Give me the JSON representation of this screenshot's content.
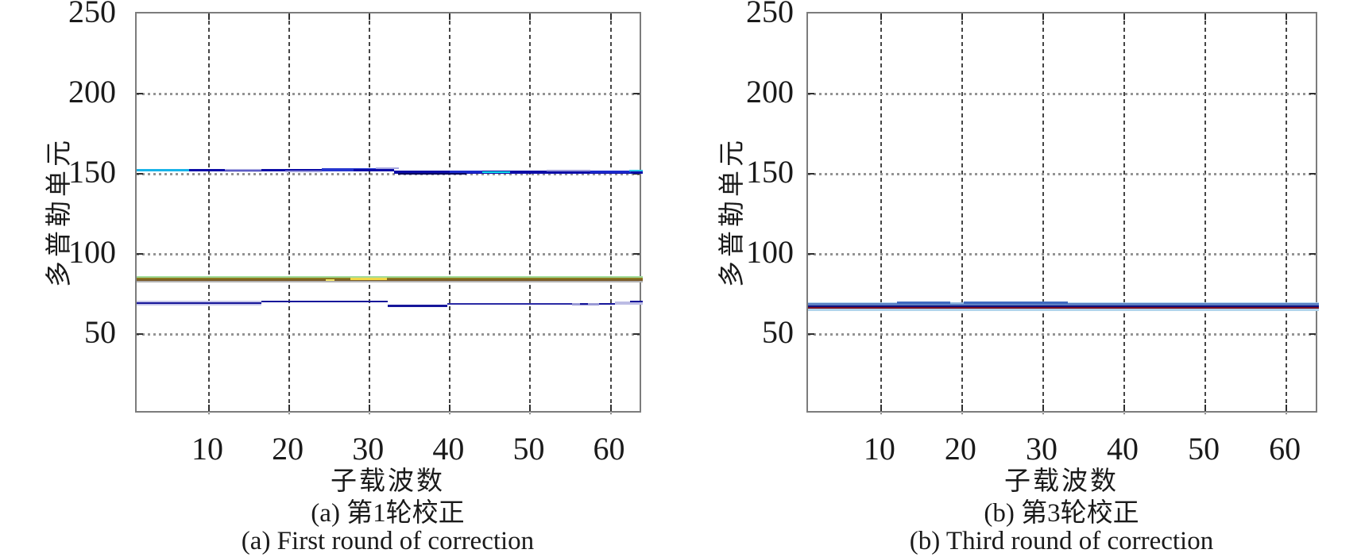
{
  "figure": {
    "background": "#ffffff",
    "border_color": "#7c7c7c",
    "vgrid_color": "#454545",
    "hgrid_color": "#949494"
  },
  "chart_data": [
    {
      "type": "line",
      "panel": "a",
      "xlabel": "子载波数",
      "ylabel": "多普勒单元",
      "caption_zh": "(a) 第1轮校正",
      "caption_en": "(a) First round of correction",
      "xlim": [
        1,
        64
      ],
      "ylim": [
        0,
        250
      ],
      "xticks": [
        10,
        20,
        30,
        40,
        50,
        60
      ],
      "yticks": [
        50,
        100,
        150,
        200,
        250
      ],
      "grid": "dashed",
      "legend": "none",
      "traces": [
        {
          "name": "doppler-trace-high",
          "doppler_cell_approx": 152,
          "x_range": [
            1,
            64
          ],
          "note": "steps from ~152 down to ~151 near x=33; mixed cyan/navy/blue/lavender segments"
        },
        {
          "name": "doppler-trace-mid",
          "doppler_cell_approx": 84,
          "x_range": [
            1,
            64
          ],
          "note": "olive/brown band with green top edge and yellow segments near x=25 and x=28-32"
        },
        {
          "name": "doppler-trace-low",
          "doppler_cell_approx": 70,
          "x_range": [
            1,
            64
          ],
          "note": "navy line stepping 69.4 / 70.2 / 67.6 / 68.7 with lavender halos at ends"
        }
      ],
      "stripes": [
        [
          1,
          33,
          152.1,
          1.6,
          "#0b0ba6"
        ],
        [
          1,
          7.5,
          152.3,
          1.4,
          "#18b4e8"
        ],
        [
          12,
          16.5,
          152.6,
          1.1,
          "#9b9bdc"
        ],
        [
          19.5,
          24,
          151.5,
          0.8,
          "#9b9bdc"
        ],
        [
          24,
          31,
          152.4,
          2.0,
          "#2636cf"
        ],
        [
          28,
          33,
          152.2,
          1.5,
          "#0b0ba6"
        ],
        [
          30.8,
          33.6,
          153.6,
          0.9,
          "#a8a8e0"
        ],
        [
          33,
          64,
          150.9,
          1.7,
          "#0b0ba6"
        ],
        [
          33.5,
          42,
          150.0,
          0.7,
          "#05055f"
        ],
        [
          40,
          44,
          151.1,
          1.4,
          "#1b2acc"
        ],
        [
          44,
          47.5,
          151.0,
          1.1,
          "#10e0e8"
        ],
        [
          52,
          57.5,
          151.8,
          1.0,
          "#9b9bdc"
        ],
        [
          57.5,
          62.5,
          151.2,
          1.5,
          "#1b2acc"
        ],
        [
          62.3,
          64,
          151.8,
          1.1,
          "#2fc8e8"
        ],
        [
          1,
          64,
          85.5,
          1.0,
          "#a2dc9a"
        ],
        [
          1,
          64,
          84.4,
          1.4,
          "#8c7a1f"
        ],
        [
          1,
          64,
          83.5,
          1.1,
          "#7a5a28"
        ],
        [
          1,
          64,
          82.7,
          0.6,
          "#b2b2b2"
        ],
        [
          24.5,
          25.6,
          83.8,
          1.0,
          "#f2e268"
        ],
        [
          27.6,
          32.2,
          84.4,
          1.2,
          "#f2d848"
        ],
        [
          1,
          16.5,
          69.4,
          2.8,
          "#c6c6ea"
        ],
        [
          1,
          16.5,
          69.4,
          1.2,
          "#16169a"
        ],
        [
          16.5,
          32.3,
          70.2,
          1.2,
          "#16169a"
        ],
        [
          32.3,
          39.7,
          67.6,
          1.2,
          "#16169a"
        ],
        [
          39.7,
          55.2,
          68.7,
          1.2,
          "#2a2aa4"
        ],
        [
          55.2,
          58.6,
          68.7,
          1.3,
          "#9b9bd6"
        ],
        [
          56.2,
          57.2,
          68.7,
          1.2,
          "#16169a"
        ],
        [
          58.6,
          61.2,
          68.9,
          1.2,
          "#16169a"
        ],
        [
          60.5,
          64,
          69.4,
          1.7,
          "#bcbce4"
        ],
        [
          62.4,
          64,
          70.3,
          1.2,
          "#16169a"
        ]
      ]
    },
    {
      "type": "line",
      "panel": "b",
      "xlabel": "子载波数",
      "ylabel": "多普勒单元",
      "caption_zh": "(b) 第3轮校正",
      "caption_en": "(b) Third round of correction",
      "xlim": [
        1,
        64
      ],
      "ylim": [
        0,
        250
      ],
      "xticks": [
        10,
        20,
        30,
        40,
        50,
        60
      ],
      "yticks": [
        50,
        100,
        150,
        200,
        250
      ],
      "grid": "dashed",
      "legend": "none",
      "traces": [
        {
          "name": "doppler-trace-converged",
          "doppler_cell_approx": 67,
          "x_range": [
            1,
            64
          ],
          "note": "single flat trace: pale-blue halo band with steel-blue top, navy and maroon core; slight bumps at x=12-18 and x=20-33"
        }
      ],
      "stripes": [
        [
          1,
          64,
          66.9,
          5.4,
          "#b0d4ec"
        ],
        [
          1,
          64,
          68.5,
          1.3,
          "#5b80c4"
        ],
        [
          1,
          64,
          67.5,
          1.1,
          "#10107e"
        ],
        [
          1,
          64,
          66.5,
          1.1,
          "#7c1120"
        ],
        [
          12,
          18.5,
          69.5,
          1.3,
          "#3f6ac0"
        ],
        [
          18.5,
          20.2,
          69.2,
          1.0,
          "#8fb6de"
        ],
        [
          20.2,
          33,
          69.5,
          1.3,
          "#3f6ac0"
        ]
      ]
    }
  ]
}
